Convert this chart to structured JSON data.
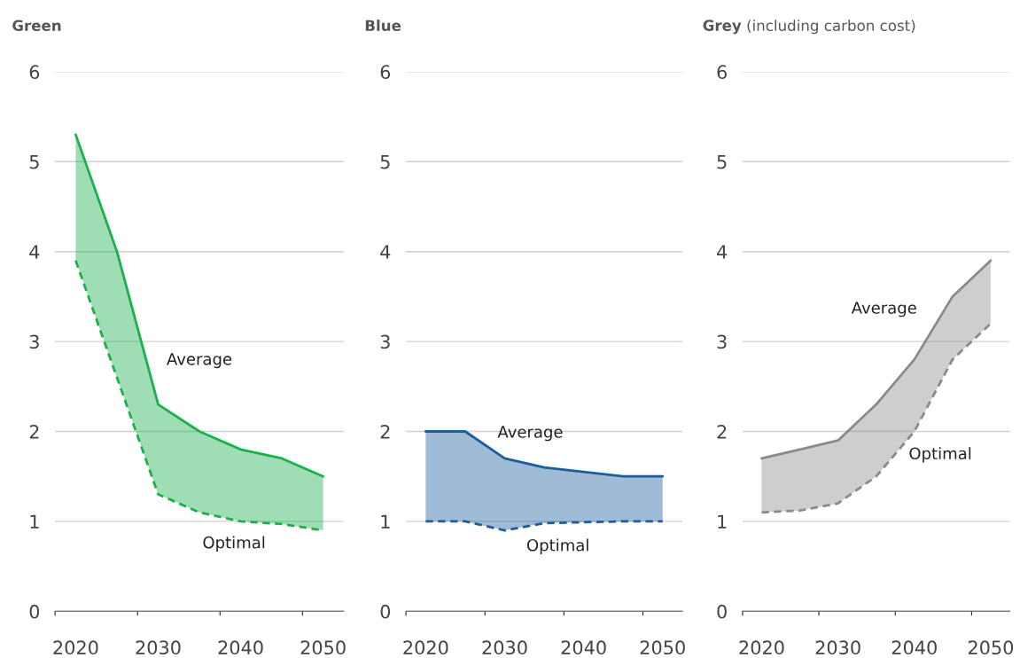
{
  "chart_data": [
    {
      "type": "line",
      "title": "Green",
      "x": [
        2020,
        2025,
        2030,
        2035,
        2040,
        2045,
        2050
      ],
      "xlim": [
        2017.5,
        2052.5
      ],
      "xticks": [
        {
          "value": 2017.5,
          "label": null
        },
        2020,
        {
          "value": 2027.5,
          "label": null
        },
        2030,
        {
          "value": 2037.5,
          "label": null
        },
        2040,
        {
          "value": 2047.5,
          "label": null
        },
        2050
      ],
      "ylim": [
        0,
        6
      ],
      "yticks": [
        0,
        1,
        2,
        3,
        4,
        5,
        6
      ],
      "grid": "y",
      "series": [
        {
          "name": "Average",
          "color": "#1ab04c",
          "line_style": "solid",
          "values": [
            5.3,
            4.0,
            2.3,
            2.0,
            1.8,
            1.7,
            1.5
          ],
          "lower": [
            3.9,
            2.6,
            1.3,
            1.1,
            1.0,
            0.97,
            0.9
          ],
          "upper": [
            5.3,
            4.0,
            2.3,
            2.0,
            1.8,
            1.7,
            1.5
          ]
        },
        {
          "name": "Optimal",
          "color": "#1ab04c",
          "line_style": "dashed",
          "values": [
            3.9,
            2.6,
            1.3,
            1.1,
            1.0,
            0.97,
            0.9
          ]
        }
      ]
    },
    {
      "type": "line",
      "title": "Blue",
      "x": [
        2020,
        2025,
        2030,
        2035,
        2040,
        2045,
        2050
      ],
      "xlim": [
        2017.5,
        2052.5
      ],
      "xticks": [
        {
          "value": 2017.5,
          "label": null
        },
        2020,
        {
          "value": 2027.5,
          "label": null
        },
        2030,
        {
          "value": 2037.5,
          "label": null
        },
        2040,
        {
          "value": 2047.5,
          "label": null
        },
        2050
      ],
      "ylim": [
        0,
        6
      ],
      "yticks": [
        0,
        1,
        2,
        3,
        4,
        5,
        6
      ],
      "grid": "y",
      "series": [
        {
          "name": "Average",
          "color": "#1c5d9c",
          "line_style": "solid",
          "values": [
            2.0,
            2.0,
            1.7,
            1.6,
            1.55,
            1.5,
            1.5
          ],
          "lower": [
            1.0,
            1.0,
            0.9,
            0.98,
            0.99,
            1.0,
            1.0
          ],
          "upper": [
            2.0,
            2.0,
            1.7,
            1.6,
            1.55,
            1.5,
            1.5
          ]
        },
        {
          "name": "Optimal",
          "color": "#1c5d9c",
          "line_style": "dashed",
          "values": [
            1.0,
            1.0,
            0.9,
            0.98,
            0.99,
            1.0,
            1.0
          ]
        }
      ]
    },
    {
      "type": "line",
      "title": "Grey",
      "subtitle": "(including carbon cost)",
      "x": [
        2020,
        2025,
        2030,
        2035,
        2040,
        2045,
        2050
      ],
      "xlim": [
        2017.5,
        2052.5
      ],
      "xticks": [
        {
          "value": 2017.5,
          "label": null
        },
        2020,
        {
          "value": 2027.5,
          "label": null
        },
        2030,
        {
          "value": 2037.5,
          "label": null
        },
        2040,
        {
          "value": 2047.5,
          "label": null
        },
        2050
      ],
      "ylim": [
        0,
        6
      ],
      "yticks": [
        0,
        1,
        2,
        3,
        4,
        5,
        6
      ],
      "grid": "y",
      "series": [
        {
          "name": "Average",
          "color": "#8a8a8a",
          "line_style": "solid",
          "values": [
            1.7,
            1.8,
            1.9,
            2.3,
            2.8,
            3.5,
            3.9
          ],
          "lower": [
            1.1,
            1.12,
            1.2,
            1.5,
            2.0,
            2.8,
            3.2
          ],
          "upper": [
            1.7,
            1.8,
            1.9,
            2.3,
            2.8,
            3.5,
            3.9
          ]
        },
        {
          "name": "Optimal",
          "color": "#8a8a8a",
          "line_style": "dashed",
          "values": [
            1.1,
            1.12,
            1.2,
            1.5,
            2.0,
            2.8,
            3.2
          ]
        }
      ]
    }
  ]
}
